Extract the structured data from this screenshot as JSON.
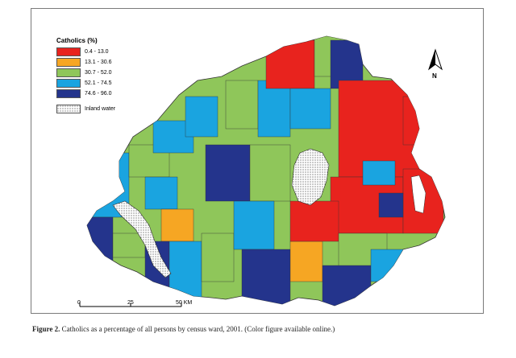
{
  "legend": {
    "title": "Catholics (%)",
    "items": [
      {
        "label": "0.4 - 13.0",
        "color": "#e8231e"
      },
      {
        "label": "13.1 - 30.6",
        "color": "#f6a623"
      },
      {
        "label": "30.7 - 52.0",
        "color": "#8fc65a"
      },
      {
        "label": "52.1 - 74.5",
        "color": "#1aa4e0"
      },
      {
        "label": "74.6 - 96.0",
        "color": "#24348c"
      }
    ],
    "inland_label": "Inland water"
  },
  "north": {
    "label": "N"
  },
  "scale": {
    "labels": [
      "0",
      "25",
      "50 KM"
    ]
  },
  "caption": {
    "figure": "Figure 2.",
    "text": "Catholics as a percentage of all persons by census ward, 2001. (Color figure available online.)"
  }
}
